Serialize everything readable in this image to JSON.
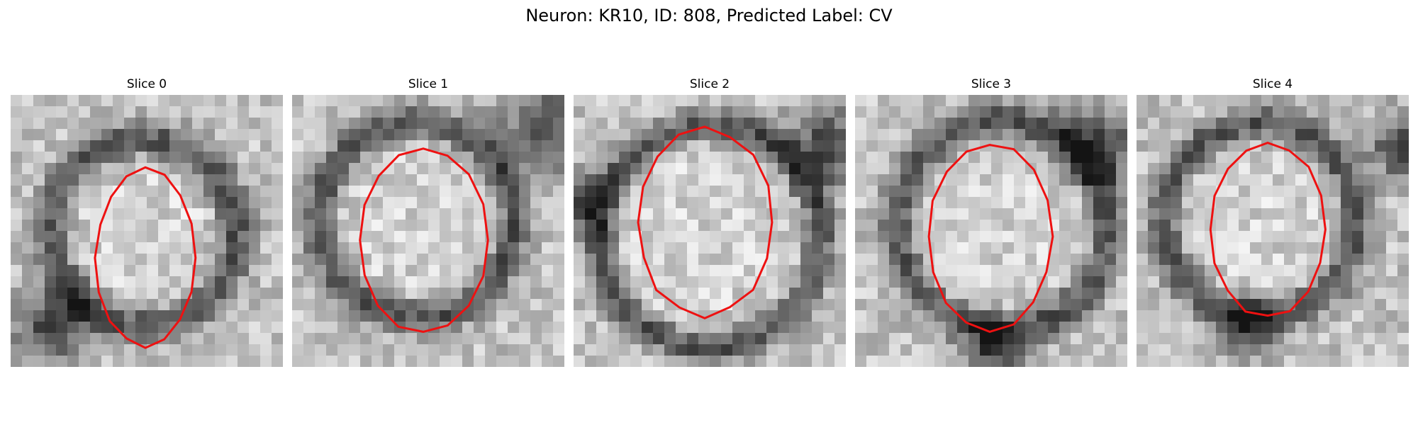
{
  "figure": {
    "title": "Neuron: KR10, ID: 808, Predicted Label: CV",
    "contour_color": "#ee1111",
    "slices": [
      {
        "label": "Slice 0"
      },
      {
        "label": "Slice 1"
      },
      {
        "label": "Slice 2"
      },
      {
        "label": "Slice 3"
      },
      {
        "label": "Slice 4"
      }
    ]
  }
}
